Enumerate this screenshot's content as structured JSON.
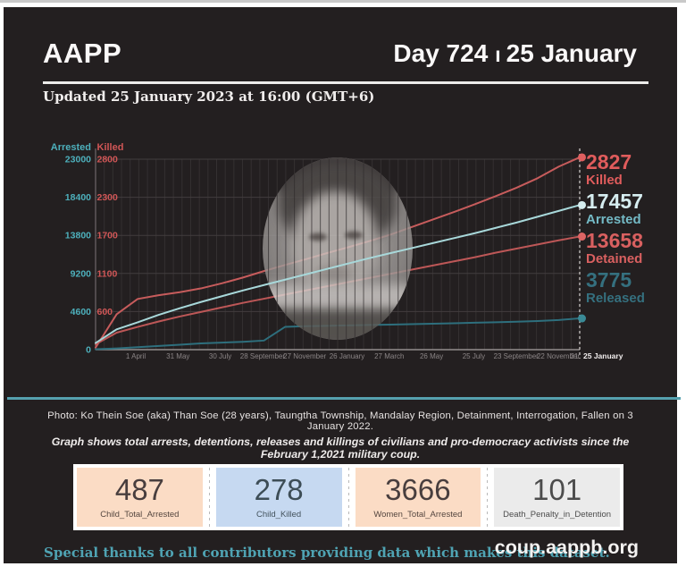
{
  "colors": {
    "background": "#231f20",
    "frame_border": "#ffffff",
    "accent_teal": "#4fa6b2",
    "accent_red": "#d95f5f",
    "divider_teal": "#55a0ae",
    "stat_bg_peach": "#fbdcc5",
    "stat_bg_blue": "#c6d9f1",
    "stat_bg_gray": "#ebebeb"
  },
  "header": {
    "brand": "AAPP",
    "day_label": "Day 724",
    "separator": "ı",
    "date_label": "25 January",
    "updated": "Updated 25 January 2023 at 16:00 (GMT+6)"
  },
  "chart_data": {
    "type": "line",
    "title": "",
    "grid": true,
    "legend_position": "right-end-labels",
    "left_axis": {
      "label": "Arrested",
      "max": 23000,
      "ticks": [
        23000,
        18400,
        13800,
        9200,
        4600,
        0
      ],
      "color": "#4db0bc"
    },
    "killed_axis": {
      "label": "Killed",
      "max": 2800,
      "ticks": [
        2800,
        2300,
        1700,
        1100,
        600
      ],
      "color": "#d05656"
    },
    "x_range": [
      "1 February 2021",
      "25 January 2023"
    ],
    "x_ticks": [
      "1 April",
      "31 May",
      "30 July",
      "28 September",
      "27 November",
      "26 January",
      "27 March",
      "26 May",
      "25 July",
      "23 September",
      "22 November",
      "21"
    ],
    "x_current": "25 January",
    "series": [
      {
        "name": "Killed",
        "axis": "killed",
        "color": "#c75c5c",
        "dot_color": "#e06060",
        "total": 2827,
        "values": [
          30,
          520,
          745,
          800,
          845,
          900,
          975,
          1060,
          1155,
          1245,
          1330,
          1420,
          1505,
          1595,
          1690,
          1800,
          1910,
          2020,
          2135,
          2255,
          2380,
          2520,
          2690,
          2827
        ]
      },
      {
        "name": "Arrested",
        "axis": "arrested",
        "color": "#a8d8da",
        "dot_color": "#d6eef0",
        "total": 17457,
        "values": [
          800,
          2450,
          3300,
          4200,
          5000,
          5750,
          6450,
          7150,
          7800,
          8450,
          9100,
          9750,
          10400,
          11050,
          11650,
          12250,
          12850,
          13450,
          14050,
          14700,
          15350,
          16050,
          16750,
          17457
        ]
      },
      {
        "name": "Detained",
        "axis": "arrested",
        "color": "#bd5757",
        "dot_color": "#dd6565",
        "total": 13658,
        "values": [
          650,
          2050,
          2750,
          3400,
          4000,
          4550,
          5100,
          5650,
          6150,
          6650,
          7150,
          7650,
          8150,
          8650,
          9150,
          9650,
          10150,
          10650,
          11150,
          11700,
          12200,
          12700,
          13200,
          13658
        ]
      },
      {
        "name": "Released",
        "axis": "arrested",
        "color": "#2e6f7d",
        "dot_color": "#3a8a96",
        "total": 3775,
        "values": [
          50,
          150,
          300,
          450,
          600,
          750,
          850,
          950,
          1100,
          2750,
          2830,
          2880,
          2930,
          2980,
          3030,
          3080,
          3130,
          3190,
          3250,
          3310,
          3380,
          3460,
          3580,
          3775
        ]
      }
    ]
  },
  "captions": {
    "photo": "Photo:  Ko Thein Soe (aka) Than Soe (28 years), Taungtha Township, Mandalay Region, Detainment, Interrogation, Fallen on 3 January 2022.",
    "graph_note": "Graph shows total arrests, detentions, releases and killings of civilians and pro-democracy activists since the February 1,2021 military coup."
  },
  "stats": [
    {
      "value": "487",
      "label": "Child_Total_Arrested",
      "bg": "#fbdcc5"
    },
    {
      "value": "278",
      "label": "Child_Killed",
      "bg": "#c6d9f1"
    },
    {
      "value": "3666",
      "label": "Women_Total_Arrested",
      "bg": "#fbdcc5"
    },
    {
      "value": "101",
      "label": "Death_Penalty_in_Detention",
      "bg": "#ebebeb"
    }
  ],
  "footer": {
    "thanks": "Special thanks to all contributors providing data which makes this dataset.",
    "site": "coup.aappb.org"
  }
}
